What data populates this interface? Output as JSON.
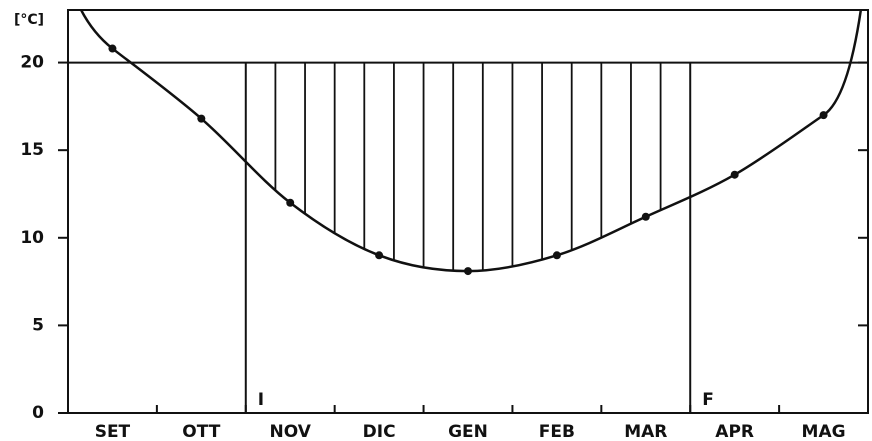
{
  "chart_data": {
    "type": "line",
    "ylabel": "[°C]",
    "categories": [
      "SET",
      "OTT",
      "NOV",
      "DIC",
      "GEN",
      "FEB",
      "MAR",
      "APR",
      "MAG"
    ],
    "values": [
      20.8,
      16.8,
      12.0,
      9.0,
      8.1,
      9.0,
      11.2,
      13.6,
      17.0
    ],
    "color": "#111111",
    "ylim": [
      0,
      23
    ],
    "yticks": [
      0,
      5,
      10,
      15,
      20
    ],
    "threshold": 20,
    "annotations": [
      {
        "label": "I",
        "x": 1.5
      },
      {
        "label": "F",
        "x": 6.5
      }
    ],
    "grid": false
  }
}
